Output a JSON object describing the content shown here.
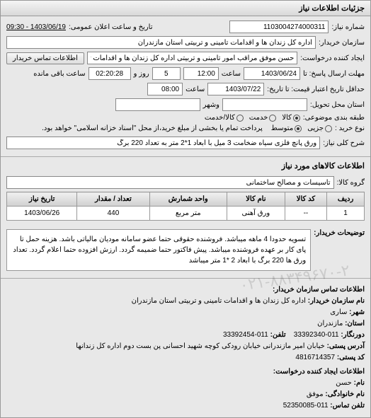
{
  "panel": {
    "title": "جزئیات اطلاعات نیاز"
  },
  "fields": {
    "request_number_label": "شماره نیاز:",
    "request_number": "1103004274000311",
    "announce_datetime_label": "تاریخ و ساعت اعلان عمومی:",
    "announce_datetime": "1403/06/19 - 09:30",
    "buyer_org_label": "سازمان خریدار:",
    "buyer_org": "اداره کل زندان ها و اقدامات تامینی و تربیتی استان مازندران",
    "request_creator_label": "ایجاد کننده درخواست:",
    "request_creator": "حسن موفق مراقب امور تامینی و تربیتی اداره کل زندان ها و اقدامات تامینی و تر",
    "buyer_contact_btn": "اطلاعات تماس خریدار",
    "response_deadline_label": "مهلت ارسال پاسخ: تا",
    "response_deadline_date": "1403/06/24",
    "time_label": "ساعت",
    "response_deadline_time": "12:00",
    "days_remaining": "5",
    "days_remaining_label": "روز و",
    "time_remaining": "02:20:28",
    "time_remaining_label": "ساعت باقی مانده",
    "validity_label": "حداقل تاریخ اعتبار قیمت: تا تاریخ:",
    "validity_date": "1403/07/22",
    "validity_time": "08:00",
    "delivery_province_label": "استان محل تحویل:",
    "delivery_city_label": "وشهر",
    "packaging_label": "طبقه بندی موضوعی:",
    "pack_opt1": "کالا",
    "pack_opt2": "خدمت",
    "pack_opt3": "کالا/خدمت",
    "buy_type_label": "نوع خرید :",
    "buy_opt1": "جزیی",
    "buy_opt2": "متوسط",
    "buy_note": "پرداخت تمام یا بخشی از مبلغ خرید،از محل \"اسناد خزانه اسلامی\" خواهد بود.",
    "desc_label": "شرح کلی نیاز:",
    "desc_text": "ورق پانچ فلزی سیاه ضخامت 3 میل با ابعاد 1*2 متر به تعداد 220 برگ"
  },
  "goods": {
    "section_title": "اطلاعات کالاهای مورد نیاز",
    "group_label": "گروه کالا:",
    "group_value": "تاسیسات و مصالح ساختمانی",
    "columns": [
      "ردیف",
      "کد کالا",
      "نام کالا",
      "واحد شمارش",
      "تعداد / مقدار",
      "تاریخ نیاز"
    ],
    "rows": [
      [
        "1",
        "--",
        "ورق آهنی",
        "متر مربع",
        "440",
        "1403/06/26"
      ]
    ]
  },
  "notes": {
    "label": "توضیحات خریدار:",
    "text": "تسویه حدودا 4 ماهه میباشد. فروشنده حقوقی حتما عضو سامانه مودیان مالیاتی باشد. هزینه حمل تا پای کار بر عهده فروشنده میباشد. پیش فاکتور حتما ضمیمه گردد. ارزش افزوده حتما اعلام گردد. تعداد ورق ها 220 برگ با ابعاد 2 *1 متر میباشد"
  },
  "contact": {
    "section_title": "اطلاعات تماس سازمان خریدار:",
    "org_label": "نام سازمان خریدار:",
    "org": "اداره کل زندان ها و اقدامات تامینی و تربیتی استان مازندران",
    "city_label": "شهر:",
    "city": "ساری",
    "province_label": "استان:",
    "province": "مازندران",
    "fax_label": "دورنگار:",
    "fax": "011-33392340",
    "phone_label": "تلفن:",
    "phone": "011-33392454",
    "address_label": "آدرس پستی:",
    "address": "خیابان امیر مازندرانی خیابان رودکی کوچه شهید احسانی پن بست دوم اداره کل زندانها",
    "postal_label": "کد پستی:",
    "postal": "4816714357",
    "creator_section": "اطلاعات ایجاد کننده درخواست:",
    "name_label": "نام:",
    "name": "حسن",
    "family_label": "نام خانوادگی:",
    "family": "موفق",
    "tel_label": "تلفن تماس:",
    "tel": "011-52350085"
  },
  "watermark": "۰۲۱-۸۸۳۴۹۶۷۰-۲"
}
